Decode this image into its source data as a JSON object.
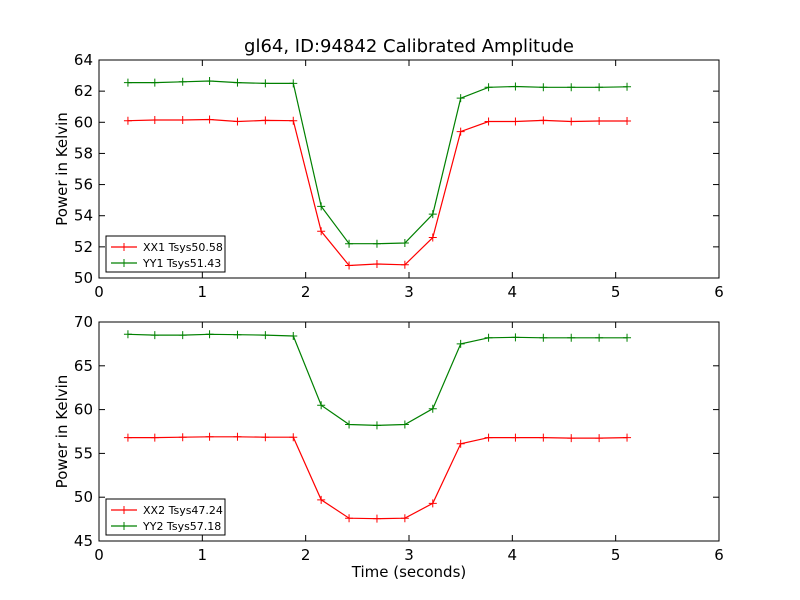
{
  "title": "gl64, ID:94842 Calibrated Amplitude",
  "chart_data": [
    {
      "type": "line",
      "ylabel": "Power in Kelvin",
      "xlabel": "",
      "xlim": [
        0,
        6
      ],
      "ylim": [
        50,
        64
      ],
      "xticks": [
        "0",
        "1",
        "2",
        "3",
        "4",
        "5",
        "6"
      ],
      "yticks": [
        "50",
        "52",
        "54",
        "56",
        "58",
        "60",
        "62",
        "64"
      ],
      "grid": false,
      "legend_position": "lower-left",
      "x": [
        0.28,
        0.54,
        0.81,
        1.07,
        1.34,
        1.61,
        1.88,
        2.15,
        2.42,
        2.69,
        2.96,
        3.23,
        3.5,
        3.77,
        4.03,
        4.3,
        4.57,
        4.84,
        5.11
      ],
      "series": [
        {
          "name": "XX1 Tsys50.58",
          "color": "#ff0000",
          "values": [
            60.1,
            60.15,
            60.15,
            60.18,
            60.05,
            60.12,
            60.1,
            53.0,
            50.8,
            50.9,
            50.85,
            52.6,
            59.4,
            60.05,
            60.05,
            60.12,
            60.05,
            60.08,
            60.08
          ]
        },
        {
          "name": "YY1 Tsys51.43",
          "color": "#008000",
          "values": [
            62.55,
            62.55,
            62.6,
            62.65,
            62.55,
            62.5,
            62.5,
            54.6,
            52.2,
            52.2,
            52.25,
            54.1,
            61.55,
            62.25,
            62.3,
            62.25,
            62.25,
            62.25,
            62.28
          ]
        }
      ]
    },
    {
      "type": "line",
      "ylabel": "Power in Kelvin",
      "xlabel": "Time (seconds)",
      "xlim": [
        0,
        6
      ],
      "ylim": [
        45,
        70
      ],
      "xticks": [
        "0",
        "1",
        "2",
        "3",
        "4",
        "5",
        "6"
      ],
      "yticks": [
        "45",
        "50",
        "55",
        "60",
        "65",
        "70"
      ],
      "grid": false,
      "legend_position": "lower-left",
      "x": [
        0.28,
        0.54,
        0.81,
        1.07,
        1.34,
        1.61,
        1.88,
        2.15,
        2.42,
        2.69,
        2.96,
        3.23,
        3.5,
        3.77,
        4.03,
        4.3,
        4.57,
        4.84,
        5.11
      ],
      "series": [
        {
          "name": "XX2 Tsys47.24",
          "color": "#ff0000",
          "values": [
            56.8,
            56.8,
            56.85,
            56.9,
            56.9,
            56.85,
            56.85,
            49.7,
            47.6,
            47.55,
            47.6,
            49.3,
            56.1,
            56.8,
            56.8,
            56.8,
            56.75,
            56.75,
            56.8
          ]
        },
        {
          "name": "YY2 Tsys57.18",
          "color": "#008000",
          "values": [
            68.6,
            68.5,
            68.5,
            68.6,
            68.55,
            68.5,
            68.4,
            60.5,
            58.3,
            58.2,
            58.3,
            60.1,
            67.5,
            68.2,
            68.25,
            68.2,
            68.2,
            68.2,
            68.2
          ]
        }
      ]
    }
  ]
}
